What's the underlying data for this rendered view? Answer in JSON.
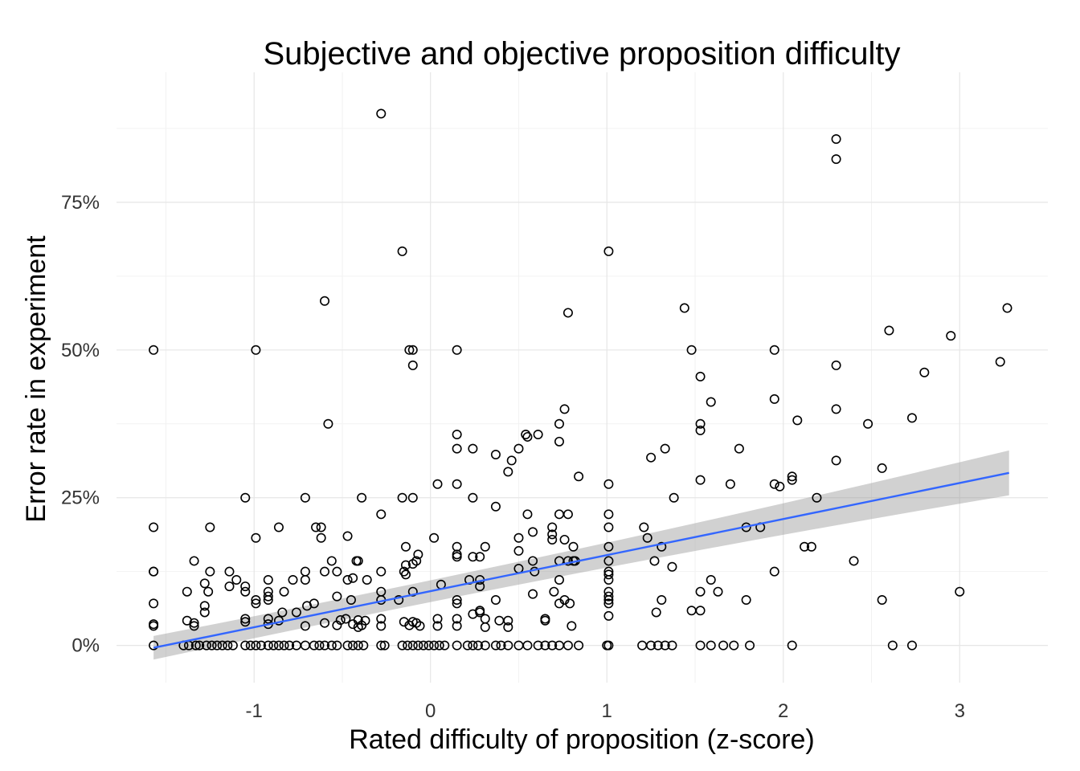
{
  "chart_data": {
    "type": "scatter",
    "title": "Subjective and objective proposition difficulty",
    "xlabel": "Rated difficulty of proposition (z-score)",
    "ylabel": "Error rate in experiment",
    "xlim": [
      -1.78,
      3.5
    ],
    "ylim": [
      -0.063,
      0.97
    ],
    "x_ticks": [
      -1,
      0,
      1,
      2,
      3
    ],
    "x_tick_labels": [
      "-1",
      "0",
      "1",
      "2",
      "3"
    ],
    "y_ticks": [
      0,
      0.25,
      0.5,
      0.75
    ],
    "y_tick_labels": [
      "0%",
      "25%",
      "50%",
      "75%"
    ],
    "grid": true,
    "legend": "none",
    "colors": {
      "points": "#000000",
      "fit_line": "#3366ff",
      "ribbon": "#999999",
      "grid": "#e6e6e6"
    },
    "fit": {
      "x0": -1.57,
      "y0": -0.004,
      "x1": 3.28,
      "y1": 0.292,
      "ci_low_at_x1": 0.254,
      "ci_high_at_x1": 0.33,
      "ci_low_at_x0": -0.024,
      "ci_high_at_x0": 0.016
    },
    "points": [
      [
        -0.28,
        0.9
      ],
      [
        2.3,
        0.857
      ],
      [
        2.3,
        0.823
      ],
      [
        -0.16,
        0.667
      ],
      [
        1.01,
        0.667
      ],
      [
        -0.6,
        0.583
      ],
      [
        0.78,
        0.563
      ],
      [
        1.44,
        0.571
      ],
      [
        3.27,
        0.571
      ],
      [
        2.6,
        0.533
      ],
      [
        2.95,
        0.524
      ],
      [
        3.23,
        0.48
      ],
      [
        -1.57,
        0.5
      ],
      [
        -0.99,
        0.5
      ],
      [
        -0.12,
        0.5
      ],
      [
        -0.1,
        0.5
      ],
      [
        0.15,
        0.5
      ],
      [
        1.48,
        0.5
      ],
      [
        1.95,
        0.5
      ],
      [
        -0.1,
        0.474
      ],
      [
        2.3,
        0.474
      ],
      [
        1.53,
        0.455
      ],
      [
        2.8,
        0.462
      ],
      [
        1.59,
        0.412
      ],
      [
        1.95,
        0.417
      ],
      [
        0.76,
        0.4
      ],
      [
        2.3,
        0.4
      ],
      [
        2.08,
        0.381
      ],
      [
        2.73,
        0.385
      ],
      [
        2.48,
        0.375
      ],
      [
        -0.58,
        0.375
      ],
      [
        0.73,
        0.375
      ],
      [
        1.53,
        0.375
      ],
      [
        1.53,
        0.364
      ],
      [
        0.15,
        0.357
      ],
      [
        0.54,
        0.357
      ],
      [
        0.55,
        0.353
      ],
      [
        0.61,
        0.357
      ],
      [
        0.73,
        0.345
      ],
      [
        0.15,
        0.333
      ],
      [
        0.24,
        0.333
      ],
      [
        0.5,
        0.333
      ],
      [
        1.33,
        0.333
      ],
      [
        1.75,
        0.333
      ],
      [
        0.37,
        0.323
      ],
      [
        0.46,
        0.313
      ],
      [
        1.25,
        0.318
      ],
      [
        2.3,
        0.313
      ],
      [
        2.56,
        0.3
      ],
      [
        0.44,
        0.294
      ],
      [
        0.84,
        0.286
      ],
      [
        2.05,
        0.286
      ],
      [
        2.05,
        0.28
      ],
      [
        1.53,
        0.28
      ],
      [
        0.04,
        0.273
      ],
      [
        0.15,
        0.273
      ],
      [
        1.01,
        0.273
      ],
      [
        1.7,
        0.273
      ],
      [
        1.95,
        0.273
      ],
      [
        1.98,
        0.269
      ],
      [
        -1.05,
        0.25
      ],
      [
        -0.71,
        0.25
      ],
      [
        -0.39,
        0.25
      ],
      [
        -0.16,
        0.25
      ],
      [
        -0.1,
        0.25
      ],
      [
        0.24,
        0.25
      ],
      [
        1.38,
        0.25
      ],
      [
        2.19,
        0.25
      ],
      [
        0.37,
        0.235
      ],
      [
        -0.28,
        0.222
      ],
      [
        0.55,
        0.222
      ],
      [
        0.73,
        0.222
      ],
      [
        0.78,
        0.222
      ],
      [
        1.01,
        0.222
      ],
      [
        -1.57,
        0.2
      ],
      [
        -1.25,
        0.2
      ],
      [
        -0.65,
        0.2
      ],
      [
        -0.62,
        0.2
      ],
      [
        -0.86,
        0.2
      ],
      [
        0.69,
        0.2
      ],
      [
        1.01,
        0.2
      ],
      [
        1.21,
        0.2
      ],
      [
        1.79,
        0.2
      ],
      [
        1.87,
        0.2
      ],
      [
        0.58,
        0.192
      ],
      [
        0.69,
        0.188
      ],
      [
        -0.47,
        0.185
      ],
      [
        -0.99,
        0.182
      ],
      [
        -0.62,
        0.182
      ],
      [
        0.02,
        0.182
      ],
      [
        0.5,
        0.182
      ],
      [
        0.69,
        0.179
      ],
      [
        0.76,
        0.179
      ],
      [
        1.23,
        0.182
      ],
      [
        -0.14,
        0.167
      ],
      [
        0.15,
        0.167
      ],
      [
        0.31,
        0.167
      ],
      [
        0.81,
        0.167
      ],
      [
        1.01,
        0.167
      ],
      [
        1.31,
        0.167
      ],
      [
        2.12,
        0.167
      ],
      [
        2.16,
        0.167
      ],
      [
        0.5,
        0.16
      ],
      [
        0.15,
        0.154
      ],
      [
        -0.07,
        0.154
      ],
      [
        0.15,
        0.15
      ],
      [
        0.24,
        0.15
      ],
      [
        0.28,
        0.15
      ],
      [
        -1.34,
        0.143
      ],
      [
        -0.56,
        0.143
      ],
      [
        -0.42,
        0.143
      ],
      [
        -0.41,
        0.143
      ],
      [
        -0.08,
        0.143
      ],
      [
        0.58,
        0.143
      ],
      [
        0.73,
        0.143
      ],
      [
        0.78,
        0.143
      ],
      [
        0.81,
        0.143
      ],
      [
        0.82,
        0.143
      ],
      [
        1.01,
        0.143
      ],
      [
        1.27,
        0.143
      ],
      [
        2.4,
        0.143
      ],
      [
        -0.14,
        0.136
      ],
      [
        -0.1,
        0.138
      ],
      [
        1.37,
        0.133
      ],
      [
        0.5,
        0.13
      ],
      [
        -1.25,
        0.125
      ],
      [
        -1.57,
        0.125
      ],
      [
        -1.57,
        0.125
      ],
      [
        -1.14,
        0.125
      ],
      [
        -0.71,
        0.125
      ],
      [
        -0.6,
        0.125
      ],
      [
        -0.53,
        0.125
      ],
      [
        -0.28,
        0.125
      ],
      [
        -0.15,
        0.125
      ],
      [
        -0.14,
        0.12
      ],
      [
        0.59,
        0.125
      ],
      [
        1.01,
        0.125
      ],
      [
        1.95,
        0.125
      ],
      [
        1.01,
        0.12
      ],
      [
        -1.1,
        0.111
      ],
      [
        -0.92,
        0.111
      ],
      [
        -0.78,
        0.111
      ],
      [
        -0.71,
        0.111
      ],
      [
        -0.47,
        0.111
      ],
      [
        -0.44,
        0.114
      ],
      [
        -0.36,
        0.111
      ],
      [
        0.22,
        0.111
      ],
      [
        0.28,
        0.111
      ],
      [
        0.73,
        0.111
      ],
      [
        1.01,
        0.111
      ],
      [
        1.59,
        0.111
      ],
      [
        -1.28,
        0.105
      ],
      [
        -1.05,
        0.1
      ],
      [
        -1.14,
        0.1
      ],
      [
        0.06,
        0.103
      ],
      [
        0.28,
        0.1
      ],
      [
        -1.38,
        0.091
      ],
      [
        -1.26,
        0.091
      ],
      [
        -1.05,
        0.091
      ],
      [
        -0.92,
        0.091
      ],
      [
        -0.92,
        0.083
      ],
      [
        -0.83,
        0.091
      ],
      [
        -0.28,
        0.091
      ],
      [
        -0.1,
        0.091
      ],
      [
        0.58,
        0.087
      ],
      [
        0.7,
        0.091
      ],
      [
        1.01,
        0.091
      ],
      [
        1.01,
        0.083
      ],
      [
        1.53,
        0.091
      ],
      [
        1.63,
        0.091
      ],
      [
        3.0,
        0.091
      ],
      [
        -0.99,
        0.077
      ],
      [
        -0.99,
        0.071
      ],
      [
        -0.92,
        0.077
      ],
      [
        -0.53,
        0.083
      ],
      [
        -0.45,
        0.077
      ],
      [
        -0.28,
        0.077
      ],
      [
        -0.18,
        0.077
      ],
      [
        0.15,
        0.077
      ],
      [
        0.15,
        0.071
      ],
      [
        0.37,
        0.077
      ],
      [
        0.73,
        0.071
      ],
      [
        0.76,
        0.077
      ],
      [
        0.79,
        0.071
      ],
      [
        1.01,
        0.077
      ],
      [
        1.01,
        0.071
      ],
      [
        1.31,
        0.077
      ],
      [
        1.79,
        0.077
      ],
      [
        2.56,
        0.077
      ],
      [
        -1.57,
        0.071
      ],
      [
        -1.28,
        0.067
      ],
      [
        -0.66,
        0.071
      ],
      [
        -0.7,
        0.067
      ],
      [
        -0.84,
        0.056
      ],
      [
        -0.76,
        0.056
      ],
      [
        -1.28,
        0.056
      ],
      [
        0.24,
        0.053
      ],
      [
        0.28,
        0.056
      ],
      [
        0.28,
        0.059
      ],
      [
        1.01,
        0.05
      ],
      [
        1.28,
        0.056
      ],
      [
        1.48,
        0.059
      ],
      [
        1.53,
        0.059
      ],
      [
        0.31,
        0.045
      ],
      [
        -1.05,
        0.045
      ],
      [
        -1.05,
        0.04
      ],
      [
        -0.92,
        0.045
      ],
      [
        -0.86,
        0.042
      ],
      [
        -0.51,
        0.043
      ],
      [
        -0.48,
        0.045
      ],
      [
        -0.41,
        0.043
      ],
      [
        -0.37,
        0.042
      ],
      [
        -0.28,
        0.045
      ],
      [
        -0.15,
        0.04
      ],
      [
        -0.1,
        0.04
      ],
      [
        0.04,
        0.045
      ],
      [
        0.15,
        0.045
      ],
      [
        0.39,
        0.042
      ],
      [
        0.44,
        0.042
      ],
      [
        0.65,
        0.045
      ],
      [
        0.65,
        0.042
      ],
      [
        -1.38,
        0.042
      ],
      [
        -1.57,
        0.036
      ],
      [
        -1.57,
        0.033
      ],
      [
        -1.34,
        0.038
      ],
      [
        -1.34,
        0.033
      ],
      [
        -0.92,
        0.036
      ],
      [
        -0.71,
        0.033
      ],
      [
        -0.6,
        0.038
      ],
      [
        -0.53,
        0.034
      ],
      [
        -0.44,
        0.036
      ],
      [
        -0.41,
        0.031
      ],
      [
        -0.39,
        0.034
      ],
      [
        -0.28,
        0.033
      ],
      [
        -0.12,
        0.034
      ],
      [
        -0.06,
        0.033
      ],
      [
        0.04,
        0.033
      ],
      [
        0.15,
        0.033
      ],
      [
        0.31,
        0.031
      ],
      [
        0.44,
        0.031
      ],
      [
        0.8,
        0.033
      ],
      [
        -0.08,
        0.038
      ],
      [
        -1.57,
        0.0
      ],
      [
        -1.4,
        0.0
      ],
      [
        -1.37,
        0.0
      ],
      [
        -1.33,
        0.0
      ],
      [
        -1.31,
        0.0
      ],
      [
        -1.27,
        0.0
      ],
      [
        -1.24,
        0.0
      ],
      [
        -1.21,
        0.0
      ],
      [
        -1.18,
        0.0
      ],
      [
        -1.15,
        0.0
      ],
      [
        -1.12,
        0.0
      ],
      [
        -1.05,
        0.0
      ],
      [
        -1.02,
        0.0
      ],
      [
        -0.99,
        0.0
      ],
      [
        -0.96,
        0.0
      ],
      [
        -0.92,
        0.0
      ],
      [
        -0.89,
        0.0
      ],
      [
        -0.86,
        0.0
      ],
      [
        -0.83,
        0.0
      ],
      [
        -0.8,
        0.0
      ],
      [
        -0.76,
        0.0
      ],
      [
        -0.71,
        0.0
      ],
      [
        -0.66,
        0.0
      ],
      [
        -0.63,
        0.0
      ],
      [
        -0.6,
        0.0
      ],
      [
        -0.56,
        0.0
      ],
      [
        -0.53,
        0.0
      ],
      [
        -0.47,
        0.0
      ],
      [
        -0.44,
        0.0
      ],
      [
        -0.41,
        0.0
      ],
      [
        -0.38,
        0.0
      ],
      [
        -0.28,
        0.0
      ],
      [
        -0.26,
        0.0
      ],
      [
        -0.16,
        0.0
      ],
      [
        -0.13,
        0.0
      ],
      [
        -0.1,
        0.0
      ],
      [
        -0.07,
        0.0
      ],
      [
        -0.04,
        0.0
      ],
      [
        -0.01,
        0.0
      ],
      [
        0.02,
        0.0
      ],
      [
        0.05,
        0.0
      ],
      [
        0.08,
        0.0
      ],
      [
        0.15,
        0.0
      ],
      [
        0.21,
        0.0
      ],
      [
        0.24,
        0.0
      ],
      [
        0.27,
        0.0
      ],
      [
        0.31,
        0.0
      ],
      [
        0.37,
        0.0
      ],
      [
        0.4,
        0.0
      ],
      [
        0.44,
        0.0
      ],
      [
        0.5,
        0.0
      ],
      [
        0.55,
        0.0
      ],
      [
        0.61,
        0.0
      ],
      [
        0.65,
        0.0
      ],
      [
        0.69,
        0.0
      ],
      [
        0.73,
        0.0
      ],
      [
        0.78,
        0.0
      ],
      [
        0.84,
        0.0
      ],
      [
        1.0,
        0.0
      ],
      [
        1.01,
        0.0
      ],
      [
        1.2,
        0.0
      ],
      [
        1.25,
        0.0
      ],
      [
        1.29,
        0.0
      ],
      [
        1.33,
        0.0
      ],
      [
        1.37,
        0.0
      ],
      [
        1.53,
        0.0
      ],
      [
        1.59,
        0.0
      ],
      [
        1.66,
        0.0
      ],
      [
        1.72,
        0.0
      ],
      [
        1.81,
        0.0
      ],
      [
        2.05,
        0.0
      ],
      [
        2.62,
        0.0
      ],
      [
        2.73,
        0.0
      ]
    ]
  }
}
